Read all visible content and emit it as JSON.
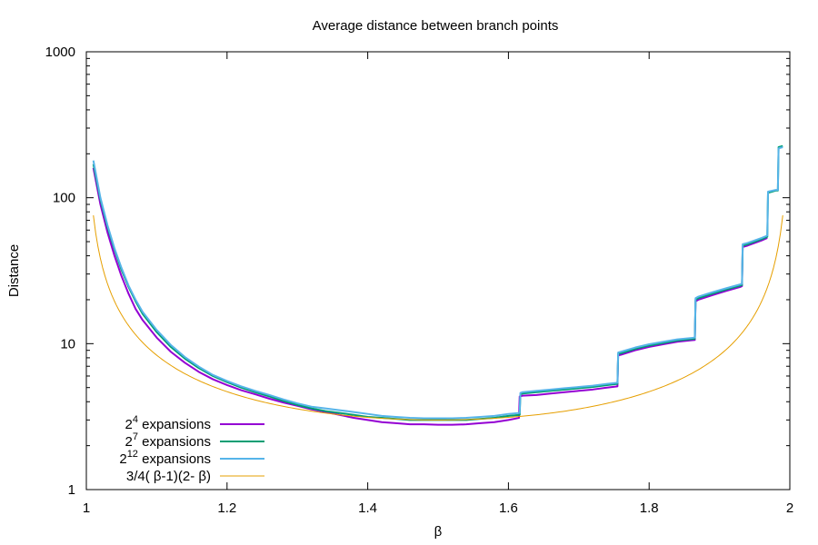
{
  "chart_data": {
    "type": "line",
    "title": "Average distance between branch points",
    "xlabel": "β",
    "ylabel": "Distance",
    "xlim": [
      1,
      2
    ],
    "ylim": [
      1,
      1000
    ],
    "yscale": "log",
    "grid": false,
    "legend_position": "bottom-left",
    "x_ticks": [
      {
        "value": 1,
        "label": "1"
      },
      {
        "value": 1.2,
        "label": "1.2"
      },
      {
        "value": 1.4,
        "label": "1.4"
      },
      {
        "value": 1.6,
        "label": "1.6"
      },
      {
        "value": 1.8,
        "label": "1.8"
      },
      {
        "value": 2,
        "label": "2"
      }
    ],
    "y_ticks": [
      {
        "value": 1,
        "label": "1"
      },
      {
        "value": 10,
        "label": "10"
      },
      {
        "value": 100,
        "label": "100"
      },
      {
        "value": 1000,
        "label": "1000"
      }
    ],
    "series": [
      {
        "name": "2^4 expansions",
        "legend_base": "2",
        "legend_exp": "4",
        "legend_rest": " expansions",
        "color": "#9400d3",
        "points": [
          [
            1.01,
            160
          ],
          [
            1.02,
            90
          ],
          [
            1.03,
            58
          ],
          [
            1.04,
            40
          ],
          [
            1.05,
            29
          ],
          [
            1.06,
            22
          ],
          [
            1.07,
            17.3
          ],
          [
            1.08,
            14.5
          ],
          [
            1.1,
            11
          ],
          [
            1.12,
            8.8
          ],
          [
            1.14,
            7.4
          ],
          [
            1.16,
            6.4
          ],
          [
            1.18,
            5.7
          ],
          [
            1.2,
            5.2
          ],
          [
            1.22,
            4.8
          ],
          [
            1.24,
            4.5
          ],
          [
            1.26,
            4.2
          ],
          [
            1.28,
            3.95
          ],
          [
            1.3,
            3.75
          ],
          [
            1.32,
            3.55
          ],
          [
            1.34,
            3.4
          ],
          [
            1.36,
            3.25
          ],
          [
            1.38,
            3.1
          ],
          [
            1.4,
            3.0
          ],
          [
            1.42,
            2.9
          ],
          [
            1.44,
            2.85
          ],
          [
            1.46,
            2.8
          ],
          [
            1.48,
            2.8
          ],
          [
            1.5,
            2.78
          ],
          [
            1.52,
            2.78
          ],
          [
            1.54,
            2.8
          ],
          [
            1.56,
            2.85
          ],
          [
            1.58,
            2.9
          ],
          [
            1.6,
            3.0
          ],
          [
            1.615,
            3.1
          ],
          [
            1.616,
            4.35
          ],
          [
            1.62,
            4.4
          ],
          [
            1.64,
            4.45
          ],
          [
            1.66,
            4.55
          ],
          [
            1.68,
            4.65
          ],
          [
            1.7,
            4.75
          ],
          [
            1.72,
            4.85
          ],
          [
            1.74,
            5.0
          ],
          [
            1.755,
            5.1
          ],
          [
            1.756,
            8.3
          ],
          [
            1.76,
            8.4
          ],
          [
            1.78,
            9.0
          ],
          [
            1.8,
            9.5
          ],
          [
            1.82,
            9.9
          ],
          [
            1.84,
            10.3
          ],
          [
            1.865,
            10.6
          ],
          [
            1.866,
            19.5
          ],
          [
            1.87,
            20
          ],
          [
            1.89,
            21.5
          ],
          [
            1.91,
            23
          ],
          [
            1.93,
            24.5
          ],
          [
            1.932,
            24.8
          ],
          [
            1.933,
            46
          ],
          [
            1.94,
            47
          ],
          [
            1.96,
            51
          ],
          [
            1.968,
            53
          ]
        ]
      },
      {
        "name": "2^7 expansions",
        "legend_base": "2",
        "legend_exp": "7",
        "legend_rest": " expansions",
        "color": "#009e73",
        "points": [
          [
            1.01,
            170
          ],
          [
            1.02,
            97
          ],
          [
            1.03,
            63
          ],
          [
            1.04,
            44
          ],
          [
            1.05,
            32
          ],
          [
            1.06,
            24.5
          ],
          [
            1.07,
            19.5
          ],
          [
            1.08,
            16
          ],
          [
            1.1,
            12
          ],
          [
            1.12,
            9.5
          ],
          [
            1.14,
            7.9
          ],
          [
            1.16,
            6.8
          ],
          [
            1.18,
            6.0
          ],
          [
            1.2,
            5.45
          ],
          [
            1.22,
            5.0
          ],
          [
            1.24,
            4.65
          ],
          [
            1.26,
            4.35
          ],
          [
            1.28,
            4.05
          ],
          [
            1.3,
            3.8
          ],
          [
            1.32,
            3.6
          ],
          [
            1.34,
            3.45
          ],
          [
            1.36,
            3.35
          ],
          [
            1.38,
            3.25
          ],
          [
            1.4,
            3.15
          ],
          [
            1.42,
            3.1
          ],
          [
            1.44,
            3.05
          ],
          [
            1.46,
            3.0
          ],
          [
            1.48,
            3.0
          ],
          [
            1.5,
            3.0
          ],
          [
            1.52,
            3.0
          ],
          [
            1.54,
            3.0
          ],
          [
            1.56,
            3.05
          ],
          [
            1.58,
            3.1
          ],
          [
            1.6,
            3.2
          ],
          [
            1.616,
            3.25
          ],
          [
            1.617,
            4.5
          ],
          [
            1.62,
            4.55
          ],
          [
            1.64,
            4.65
          ],
          [
            1.66,
            4.75
          ],
          [
            1.68,
            4.85
          ],
          [
            1.7,
            4.95
          ],
          [
            1.72,
            5.05
          ],
          [
            1.74,
            5.2
          ],
          [
            1.755,
            5.3
          ],
          [
            1.756,
            8.5
          ],
          [
            1.76,
            8.6
          ],
          [
            1.78,
            9.2
          ],
          [
            1.8,
            9.7
          ],
          [
            1.82,
            10.1
          ],
          [
            1.84,
            10.5
          ],
          [
            1.865,
            10.8
          ],
          [
            1.866,
            20
          ],
          [
            1.87,
            20.5
          ],
          [
            1.89,
            22
          ],
          [
            1.91,
            23.5
          ],
          [
            1.93,
            25
          ],
          [
            1.932,
            25.2
          ],
          [
            1.933,
            47
          ],
          [
            1.94,
            48
          ],
          [
            1.96,
            52
          ],
          [
            1.968,
            54
          ],
          [
            1.969,
            108
          ],
          [
            1.98,
            112
          ],
          [
            1.983,
            112
          ],
          [
            1.984,
            222
          ],
          [
            1.99,
            226
          ]
        ]
      },
      {
        "name": "2^12 expansions",
        "legend_base": "2",
        "legend_exp": "12",
        "legend_rest": " expansions",
        "color": "#56b4e9",
        "points": [
          [
            1.01,
            180
          ],
          [
            1.02,
            100
          ],
          [
            1.03,
            65
          ],
          [
            1.04,
            45
          ],
          [
            1.05,
            33
          ],
          [
            1.06,
            25
          ],
          [
            1.07,
            20
          ],
          [
            1.08,
            16.5
          ],
          [
            1.1,
            12.4
          ],
          [
            1.12,
            9.8
          ],
          [
            1.14,
            8.1
          ],
          [
            1.16,
            6.95
          ],
          [
            1.18,
            6.1
          ],
          [
            1.2,
            5.55
          ],
          [
            1.22,
            5.1
          ],
          [
            1.24,
            4.75
          ],
          [
            1.26,
            4.45
          ],
          [
            1.28,
            4.15
          ],
          [
            1.3,
            3.9
          ],
          [
            1.32,
            3.7
          ],
          [
            1.34,
            3.6
          ],
          [
            1.36,
            3.5
          ],
          [
            1.38,
            3.4
          ],
          [
            1.4,
            3.3
          ],
          [
            1.42,
            3.2
          ],
          [
            1.44,
            3.15
          ],
          [
            1.46,
            3.1
          ],
          [
            1.48,
            3.08
          ],
          [
            1.5,
            3.08
          ],
          [
            1.52,
            3.08
          ],
          [
            1.54,
            3.1
          ],
          [
            1.56,
            3.15
          ],
          [
            1.58,
            3.2
          ],
          [
            1.6,
            3.3
          ],
          [
            1.616,
            3.35
          ],
          [
            1.617,
            4.6
          ],
          [
            1.62,
            4.65
          ],
          [
            1.64,
            4.75
          ],
          [
            1.66,
            4.85
          ],
          [
            1.68,
            4.95
          ],
          [
            1.7,
            5.05
          ],
          [
            1.72,
            5.15
          ],
          [
            1.74,
            5.3
          ],
          [
            1.755,
            5.4
          ],
          [
            1.756,
            8.7
          ],
          [
            1.76,
            8.8
          ],
          [
            1.78,
            9.4
          ],
          [
            1.8,
            9.9
          ],
          [
            1.82,
            10.3
          ],
          [
            1.84,
            10.7
          ],
          [
            1.865,
            11
          ],
          [
            1.866,
            20.5
          ],
          [
            1.87,
            21
          ],
          [
            1.89,
            22.5
          ],
          [
            1.91,
            24
          ],
          [
            1.93,
            25.5
          ],
          [
            1.932,
            25.7
          ],
          [
            1.933,
            48
          ],
          [
            1.94,
            49
          ],
          [
            1.96,
            53
          ],
          [
            1.968,
            55
          ],
          [
            1.969,
            110
          ],
          [
            1.98,
            113
          ],
          [
            1.983,
            113
          ],
          [
            1.984,
            218
          ],
          [
            1.99,
            222
          ]
        ]
      },
      {
        "name": "3/4(β-1)(2-β)",
        "legend_plain": "3/4( β-1)(2- β)",
        "color": "#e69f00",
        "function": "3/(4*(x-1)*(2-x))",
        "x_range": [
          1.01,
          1.99
        ]
      }
    ]
  }
}
